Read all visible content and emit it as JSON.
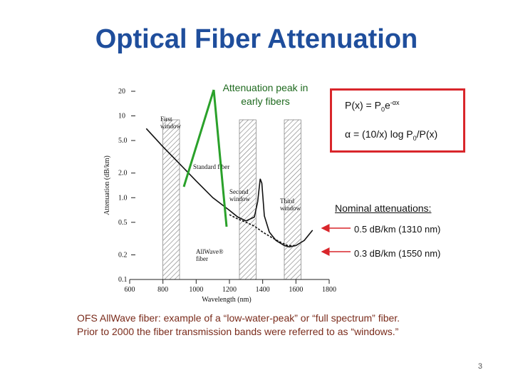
{
  "slide": {
    "title": "Optical Fiber Attenuation",
    "page_number": "3",
    "peak_note": "Attenuation peak in early fibers",
    "formula_p_lhs": "P(x) = P",
    "formula_p_sub": "0",
    "formula_p_exp_base": "e",
    "formula_p_sup": "-αx",
    "formula_alpha_lhs": "α = (10/x) log P",
    "formula_alpha_sub": "0",
    "formula_alpha_rhs": "/P(x)",
    "nominal_title": "Nominal attenuations:",
    "nominal_1": "0.5 dB/km (1310 nm)",
    "nominal_2": "0.3 dB/km (1550 nm)",
    "caption_line1": "OFS AllWave fiber: example of a “low-water-peak” or “full spectrum” fiber.",
    "caption_line2": "Prior to 2000 the fiber transmission bands were referred to as “windows.”"
  },
  "colors": {
    "title": "#1f4e9c",
    "callout_line": "#2aa12a",
    "formula_border": "#d9262b",
    "arrow": "#d9262b",
    "curve": "#111111"
  },
  "chart_data": {
    "type": "line",
    "xlabel": "Wavelength (nm)",
    "ylabel": "Attenuation (dB/km)",
    "x_ticks": [
      "600",
      "800",
      "1000",
      "1200",
      "1400",
      "1600",
      "1800"
    ],
    "y_ticks": [
      "20",
      "10",
      "5.0",
      "2.0",
      "1.0",
      "0.5",
      "0.2",
      "0.1"
    ],
    "xlim": [
      600,
      1800
    ],
    "ylim": [
      0.1,
      20
    ],
    "y_scale": "log",
    "windows": [
      {
        "name": "First window",
        "range": [
          800,
          900
        ]
      },
      {
        "name": "Second window",
        "range": [
          1260,
          1360
        ]
      },
      {
        "name": "Third window",
        "range": [
          1530,
          1630
        ]
      }
    ],
    "annotations": [
      "First window",
      "Standard fiber",
      "Second window",
      "Third window",
      "AllWave® fiber"
    ],
    "series": [
      {
        "name": "Standard fiber",
        "x": [
          700,
          800,
          900,
          1000,
          1100,
          1200,
          1250,
          1300,
          1350,
          1370,
          1385,
          1395,
          1410,
          1440,
          1480,
          1530,
          1560,
          1600,
          1650,
          1700
        ],
        "y": [
          7.0,
          4.2,
          2.6,
          1.6,
          1.0,
          0.7,
          0.58,
          0.52,
          0.58,
          0.9,
          1.7,
          1.5,
          0.6,
          0.38,
          0.3,
          0.26,
          0.25,
          0.26,
          0.3,
          0.4
        ]
      },
      {
        "name": "AllWave® fiber",
        "x": [
          1200,
          1250,
          1300,
          1350,
          1400,
          1450,
          1500,
          1550,
          1600
        ],
        "y": [
          0.62,
          0.55,
          0.5,
          0.45,
          0.38,
          0.33,
          0.29,
          0.26,
          0.26
        ]
      }
    ]
  }
}
